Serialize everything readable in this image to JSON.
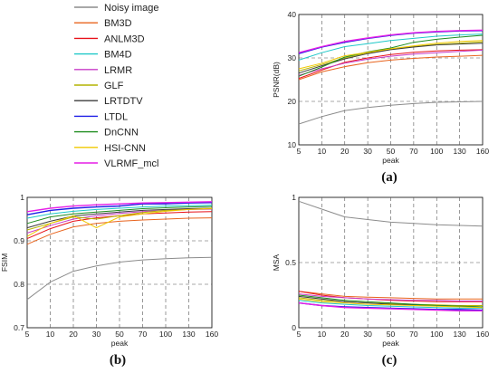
{
  "legend": [
    {
      "label": "Noisy image",
      "color": "#8c8c8c"
    },
    {
      "label": "BM3D",
      "color": "#e8641e"
    },
    {
      "label": "ANLM3D",
      "color": "#e8121a"
    },
    {
      "label": "BM4D",
      "color": "#1ec8c8"
    },
    {
      "label": "LRMR",
      "color": "#c83cc8"
    },
    {
      "label": "GLF",
      "color": "#b4b400"
    },
    {
      "label": "LRTDTV",
      "color": "#3c3c3c"
    },
    {
      "label": "LTDL",
      "color": "#1e1ee6"
    },
    {
      "label": "DnCNN",
      "color": "#1e8c1e"
    },
    {
      "label": "HSI-CNN",
      "color": "#f0c800"
    },
    {
      "label": "VLRMF_mcl",
      "color": "#e61ee6"
    }
  ],
  "chart_data": [
    {
      "type": "line",
      "panel_label": "(a)",
      "xlabel": "peak",
      "ylabel": "PSNR(dB)",
      "categories": [
        "5",
        "10",
        "20",
        "30",
        "50",
        "70",
        "100",
        "130",
        "160"
      ],
      "ylim": [
        10,
        40
      ],
      "yticks": [
        10,
        20,
        30,
        40
      ],
      "grid": true,
      "series": [
        {
          "name": "Noisy image",
          "values": [
            14.8,
            16.5,
            17.9,
            18.6,
            19.1,
            19.5,
            19.8,
            19.9,
            20.0
          ]
        },
        {
          "name": "BM3D",
          "values": [
            25.0,
            26.8,
            28.0,
            28.9,
            29.5,
            29.9,
            30.2,
            30.4,
            30.6
          ]
        },
        {
          "name": "ANLM3D",
          "values": [
            25.3,
            27.2,
            29.0,
            30.0,
            30.8,
            31.3,
            31.6,
            31.8,
            31.9
          ]
        },
        {
          "name": "BM4D",
          "values": [
            29.5,
            31.2,
            32.6,
            33.3,
            34.0,
            34.5,
            35.0,
            35.3,
            35.5
          ]
        },
        {
          "name": "LRMR",
          "values": [
            26.0,
            27.5,
            28.8,
            29.7,
            30.4,
            30.9,
            31.2,
            31.5,
            31.8
          ]
        },
        {
          "name": "GLF",
          "values": [
            27.0,
            28.5,
            30.0,
            31.2,
            32.0,
            32.6,
            33.1,
            33.4,
            33.7
          ]
        },
        {
          "name": "LRTDTV",
          "values": [
            26.5,
            28.2,
            29.8,
            31.0,
            31.9,
            32.5,
            33.0,
            33.2,
            33.4
          ]
        },
        {
          "name": "LTDL",
          "values": [
            31.0,
            32.5,
            33.6,
            34.5,
            35.2,
            35.7,
            36.0,
            36.2,
            36.3
          ]
        },
        {
          "name": "DnCNN",
          "values": [
            25.8,
            27.9,
            30.2,
            31.4,
            32.3,
            33.6,
            34.3,
            34.8,
            35.2
          ]
        },
        {
          "name": "HSI-CNN",
          "values": [
            27.5,
            28.8,
            30.5,
            31.3,
            32.1,
            32.8,
            33.4,
            33.8,
            34.0
          ]
        },
        {
          "name": "VLRMF_mcl",
          "values": [
            31.2,
            32.6,
            33.8,
            34.6,
            35.3,
            35.8,
            36.1,
            36.3,
            36.4
          ]
        }
      ]
    },
    {
      "type": "line",
      "panel_label": "(b)",
      "xlabel": "peak",
      "ylabel": "FSIM",
      "categories": [
        "5",
        "10",
        "20",
        "30",
        "50",
        "70",
        "100",
        "130",
        "160"
      ],
      "ylim": [
        0.7,
        1.0
      ],
      "yticks": [
        0.7,
        0.8,
        0.9,
        1
      ],
      "grid": true,
      "series": [
        {
          "name": "Noisy image",
          "values": [
            0.765,
            0.805,
            0.83,
            0.842,
            0.851,
            0.856,
            0.859,
            0.861,
            0.862
          ]
        },
        {
          "name": "BM3D",
          "values": [
            0.892,
            0.915,
            0.932,
            0.94,
            0.945,
            0.948,
            0.95,
            0.952,
            0.953
          ]
        },
        {
          "name": "ANLM3D",
          "values": [
            0.905,
            0.928,
            0.945,
            0.953,
            0.958,
            0.962,
            0.964,
            0.966,
            0.967
          ]
        },
        {
          "name": "BM4D",
          "values": [
            0.952,
            0.962,
            0.968,
            0.972,
            0.975,
            0.978,
            0.98,
            0.981,
            0.982
          ]
        },
        {
          "name": "LRMR",
          "values": [
            0.918,
            0.935,
            0.95,
            0.958,
            0.963,
            0.967,
            0.97,
            0.972,
            0.973
          ]
        },
        {
          "name": "GLF",
          "values": [
            0.925,
            0.94,
            0.955,
            0.95,
            0.958,
            0.965,
            0.97,
            0.972,
            0.974
          ]
        },
        {
          "name": "LRTDTV",
          "values": [
            0.93,
            0.945,
            0.957,
            0.962,
            0.966,
            0.97,
            0.972,
            0.974,
            0.975
          ]
        },
        {
          "name": "LTDL",
          "values": [
            0.96,
            0.97,
            0.975,
            0.978,
            0.98,
            0.985,
            0.985,
            0.987,
            0.988
          ]
        },
        {
          "name": "DnCNN",
          "values": [
            0.94,
            0.955,
            0.962,
            0.966,
            0.97,
            0.974,
            0.976,
            0.978,
            0.979
          ]
        },
        {
          "name": "HSI-CNN",
          "values": [
            0.91,
            0.94,
            0.958,
            0.93,
            0.955,
            0.962,
            0.968,
            0.972,
            0.975
          ]
        },
        {
          "name": "VLRMF_mcl",
          "values": [
            0.967,
            0.975,
            0.98,
            0.983,
            0.985,
            0.987,
            0.988,
            0.989,
            0.99
          ]
        }
      ]
    },
    {
      "type": "line",
      "panel_label": "(c)",
      "xlabel": "peak",
      "ylabel": "MSA",
      "categories": [
        "5",
        "10",
        "20",
        "30",
        "50",
        "70",
        "100",
        "130",
        "160"
      ],
      "ylim": [
        0,
        1
      ],
      "yticks": [
        0,
        0.5,
        1
      ],
      "grid": true,
      "series": [
        {
          "name": "Noisy image",
          "values": [
            0.97,
            0.91,
            0.85,
            0.83,
            0.81,
            0.8,
            0.79,
            0.785,
            0.78
          ]
        },
        {
          "name": "BM3D",
          "values": [
            0.28,
            0.26,
            0.24,
            0.235,
            0.23,
            0.225,
            0.22,
            0.22,
            0.22
          ]
        },
        {
          "name": "ANLM3D",
          "values": [
            0.28,
            0.25,
            0.23,
            0.22,
            0.21,
            0.205,
            0.2,
            0.2,
            0.2
          ]
        },
        {
          "name": "BM4D",
          "values": [
            0.21,
            0.19,
            0.18,
            0.17,
            0.165,
            0.16,
            0.155,
            0.15,
            0.15
          ]
        },
        {
          "name": "LRMR",
          "values": [
            0.26,
            0.24,
            0.23,
            0.22,
            0.215,
            0.21,
            0.21,
            0.205,
            0.205
          ]
        },
        {
          "name": "GLF",
          "values": [
            0.23,
            0.21,
            0.2,
            0.19,
            0.185,
            0.18,
            0.175,
            0.17,
            0.17
          ]
        },
        {
          "name": "LRTDTV",
          "values": [
            0.24,
            0.22,
            0.2,
            0.19,
            0.18,
            0.175,
            0.17,
            0.165,
            0.16
          ]
        },
        {
          "name": "LTDL",
          "values": [
            0.19,
            0.17,
            0.16,
            0.155,
            0.15,
            0.145,
            0.14,
            0.14,
            0.135
          ]
        },
        {
          "name": "DnCNN",
          "values": [
            0.25,
            0.23,
            0.21,
            0.2,
            0.19,
            0.18,
            0.17,
            0.165,
            0.16
          ]
        },
        {
          "name": "HSI-CNN",
          "values": [
            0.22,
            0.2,
            0.19,
            0.18,
            0.175,
            0.17,
            0.165,
            0.16,
            0.155
          ]
        },
        {
          "name": "VLRMF_mcl",
          "values": [
            0.19,
            0.17,
            0.155,
            0.15,
            0.145,
            0.14,
            0.135,
            0.13,
            0.13
          ]
        }
      ]
    }
  ]
}
